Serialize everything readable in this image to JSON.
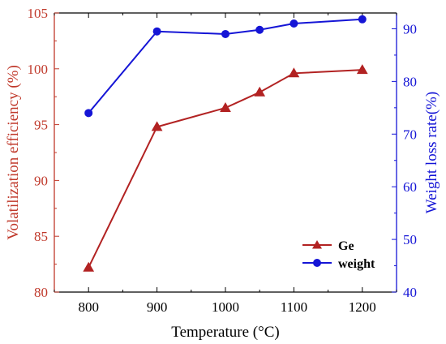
{
  "chart_data": {
    "type": "line",
    "xlabel": "Temperature (°C)",
    "ylabel_left": "Volatilization efficiency (%)",
    "ylabel_right": "Weight loss rate(%)",
    "xlim": [
      750,
      1250
    ],
    "xticks": [
      800,
      900,
      1000,
      1100,
      1200
    ],
    "ylim_left": [
      80,
      105
    ],
    "yticks_left": [
      80,
      85,
      90,
      95,
      100,
      105
    ],
    "ylim_right": [
      40,
      93
    ],
    "yticks_right": [
      40,
      50,
      60,
      70,
      80,
      90
    ],
    "legend_position": "lower-right",
    "grid": false,
    "series": [
      {
        "name": "Ge",
        "axis": "left",
        "color": "#b22222",
        "marker": "triangle",
        "x": [
          800,
          900,
          1000,
          1050,
          1100,
          1200
        ],
        "values": [
          82.2,
          94.8,
          96.5,
          97.9,
          99.6,
          99.9
        ]
      },
      {
        "name": "weight",
        "axis": "right",
        "color": "#1515d6",
        "marker": "circle",
        "x": [
          800,
          900,
          1000,
          1050,
          1100,
          1200
        ],
        "values": [
          74.0,
          89.5,
          89.0,
          89.8,
          91.0,
          91.8
        ]
      }
    ]
  },
  "colors": {
    "left_axis": "#c0392b",
    "right_axis": "#1515d6",
    "bottom_axis": "#000000"
  }
}
